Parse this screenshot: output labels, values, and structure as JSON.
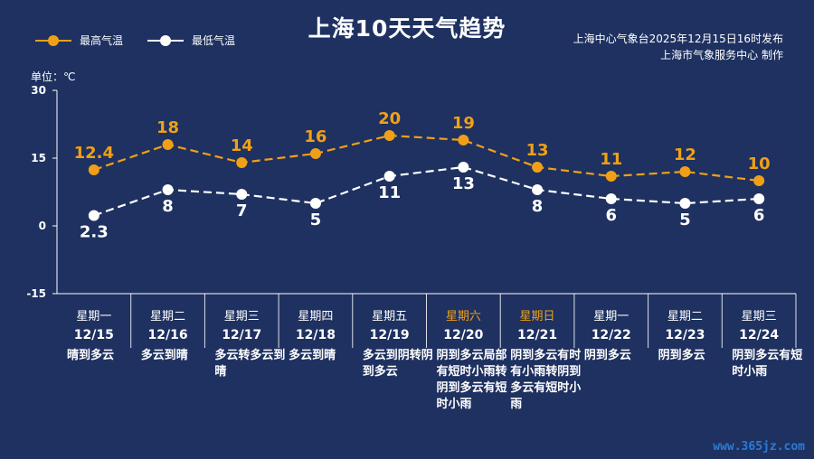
{
  "title": "上海10天天气趋势",
  "legend": {
    "high_label": "最高气温",
    "low_label": "最低气温"
  },
  "publisher": {
    "line1": "上海中心气象台2025年12月15日16时发布",
    "line2": "上海市气象服务中心  制作"
  },
  "unit_label": "单位：℃",
  "watermark": "www.365jz.com",
  "colors": {
    "background": "#1e3160",
    "high": "#f0a017",
    "low": "#ffffff",
    "weekend": "#f0a017",
    "grid": "#ffffff"
  },
  "chart_data": {
    "type": "line",
    "ylim": [
      -15,
      30
    ],
    "yticks": [
      30,
      15,
      0,
      -15
    ],
    "categories": [
      "12/15",
      "12/16",
      "12/17",
      "12/18",
      "12/19",
      "12/20",
      "12/21",
      "12/22",
      "12/23",
      "12/24"
    ],
    "weekdays": [
      "星期一",
      "星期二",
      "星期三",
      "星期四",
      "星期五",
      "星期六",
      "星期日",
      "星期一",
      "星期二",
      "星期三"
    ],
    "weekend_flags": [
      false,
      false,
      false,
      false,
      false,
      true,
      true,
      false,
      false,
      false
    ],
    "series": [
      {
        "name": "最高气温",
        "values": [
          12.4,
          18,
          14,
          16,
          20,
          19,
          13,
          11,
          12,
          10
        ],
        "labels": [
          "12.4",
          "18",
          "14",
          "16",
          "20",
          "19",
          "13",
          "11",
          "12",
          "10"
        ]
      },
      {
        "name": "最低气温",
        "values": [
          2.3,
          8,
          7,
          5,
          11,
          13,
          8,
          6,
          5,
          6
        ],
        "labels": [
          "2.3",
          "8",
          "7",
          "5",
          "11",
          "13",
          "8",
          "6",
          "5",
          "6"
        ]
      }
    ],
    "conditions": [
      "晴到多云",
      "多云到晴",
      "多云转多云到晴",
      "多云到晴",
      "多云到阴转阴到多云",
      "阴到多云局部有短时小雨转阴到多云有短时小雨",
      "阴到多云有时有小雨转阴到多云有短时小雨",
      "阴到多云",
      "阴到多云",
      "阴到多云有短时小雨"
    ]
  }
}
